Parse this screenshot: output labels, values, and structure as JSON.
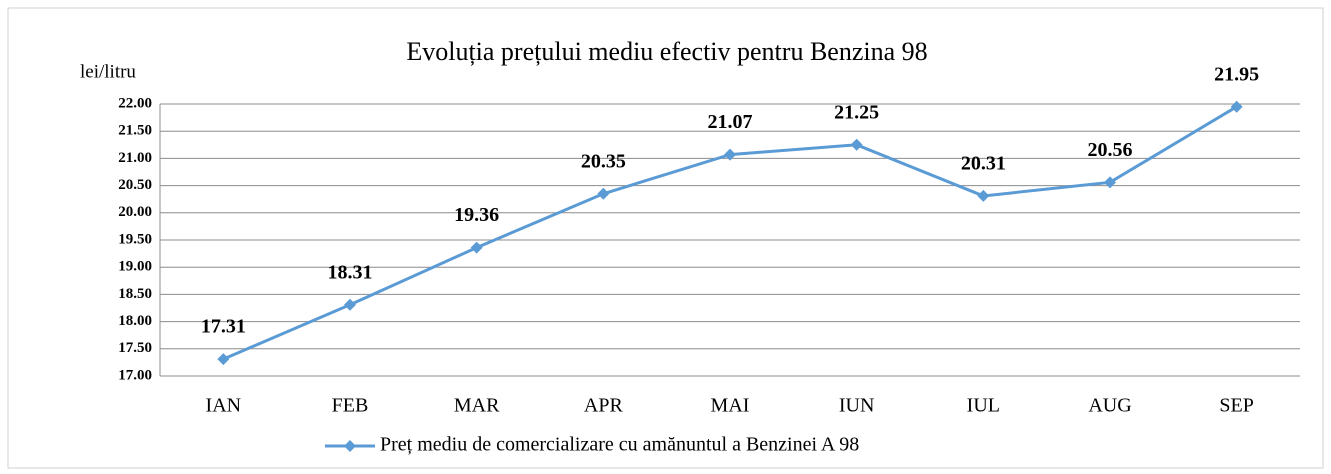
{
  "chart_data": {
    "type": "line",
    "title": "Evoluția prețului mediu efectiv pentru Benzina 98",
    "y_label": "lei/litru",
    "categories": [
      "IAN",
      "FEB",
      "MAR",
      "APR",
      "MAI",
      "IUN",
      "IUL",
      "AUG",
      "SEP"
    ],
    "series": [
      {
        "name": "Preț mediu de comercializare cu amănuntul a Benzinei A 98",
        "color": "#5b9bd5",
        "values": [
          17.31,
          18.31,
          19.36,
          20.35,
          21.07,
          21.25,
          20.31,
          20.56,
          21.95
        ]
      }
    ],
    "ylim": [
      17,
      22
    ],
    "yticks": [
      {
        "value": 17,
        "label": "17.00"
      },
      {
        "value": 17.5,
        "label": "17.50"
      },
      {
        "value": 18,
        "label": "18.00"
      },
      {
        "value": 18.5,
        "label": "18.50"
      },
      {
        "value": 19,
        "label": "19.00"
      },
      {
        "value": 19.5,
        "label": "19.50"
      },
      {
        "value": 20,
        "label": "20.00"
      },
      {
        "value": 20.5,
        "label": "20.50"
      },
      {
        "value": 21,
        "label": "21.00"
      },
      {
        "value": 21.5,
        "label": "21.50"
      },
      {
        "value": 22,
        "label": "22.00"
      }
    ],
    "grid": true,
    "legend": "bottom"
  }
}
